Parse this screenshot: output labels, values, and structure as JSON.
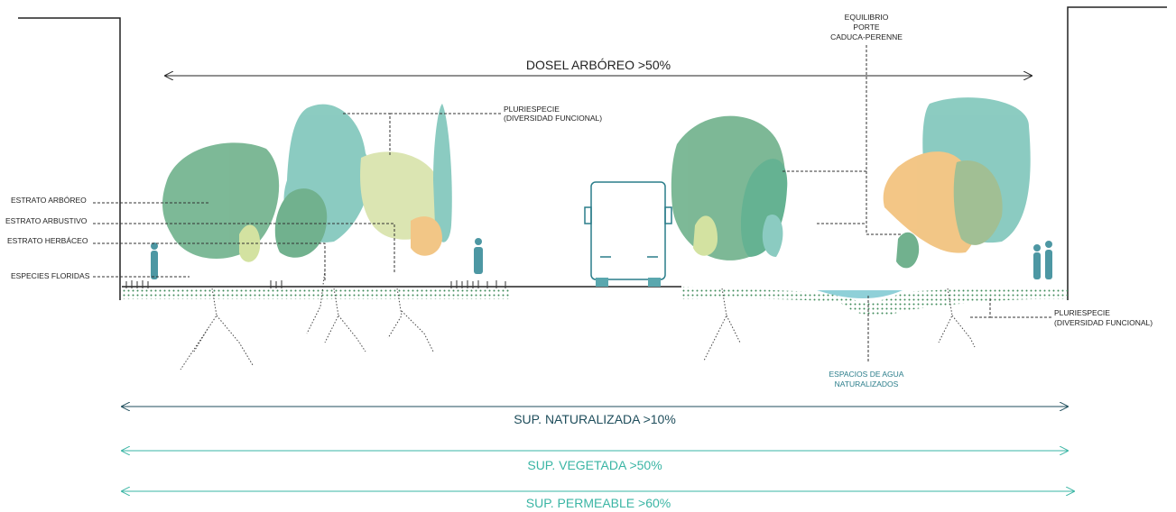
{
  "canopy": "DOSEL ARBÓREO >50%",
  "labels": {
    "pluriespecie_top": [
      "PLURIESPECIE",
      "(DIVERSIDAD FUNCIONAL)"
    ],
    "equilibrio": [
      "EQUILIBRIO",
      "PORTE",
      "CADUCA-PERENNE"
    ],
    "estrato_arboreo": "ESTRATO ARBÓREO",
    "estrato_arbustivo": "ESTRATO ARBUSTIVO",
    "estrato_herbaceo": "ESTRATO HERBÁCEO",
    "especies_floridas": "ESPECIES FLORIDAS",
    "pluriespecie_bottom": [
      "PLURIESPECIE",
      "(DIVERSIDAD FUNCIONAL)"
    ],
    "agua": [
      "ESPACIOS DE AGUA",
      "NATURALIZADOS"
    ]
  },
  "surfaces": [
    "SUP. NATURALIZADA >10%",
    "SUP. VEGETADA >50%",
    "SUP. PERMEABLE >60%"
  ]
}
